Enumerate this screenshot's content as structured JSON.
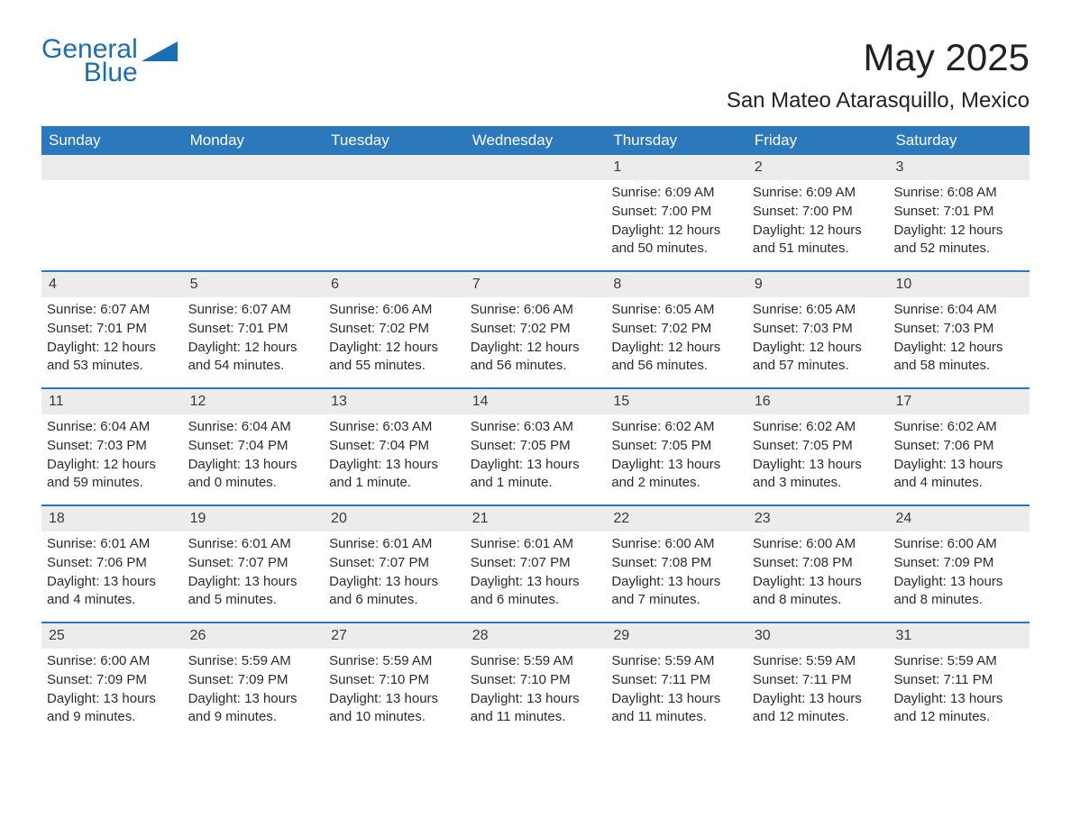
{
  "logo": {
    "text1": "General",
    "text2": "Blue",
    "icon_color": "#1a6fb4"
  },
  "title": "May 2025",
  "location": "San Mateo Atarasquillo, Mexico",
  "colors": {
    "header_bg": "#2b78bd",
    "header_text": "#ffffff",
    "row_divider": "#2b78bd",
    "daynum_bg": "#ececec",
    "body_text": "#2b2b2b",
    "page_bg": "#ffffff"
  },
  "weekdays": [
    "Sunday",
    "Monday",
    "Tuesday",
    "Wednesday",
    "Thursday",
    "Friday",
    "Saturday"
  ],
  "weeks": [
    [
      null,
      null,
      null,
      null,
      {
        "n": "1",
        "sunrise": "Sunrise: 6:09 AM",
        "sunset": "Sunset: 7:00 PM",
        "daylight": "Daylight: 12 hours and 50 minutes."
      },
      {
        "n": "2",
        "sunrise": "Sunrise: 6:09 AM",
        "sunset": "Sunset: 7:00 PM",
        "daylight": "Daylight: 12 hours and 51 minutes."
      },
      {
        "n": "3",
        "sunrise": "Sunrise: 6:08 AM",
        "sunset": "Sunset: 7:01 PM",
        "daylight": "Daylight: 12 hours and 52 minutes."
      }
    ],
    [
      {
        "n": "4",
        "sunrise": "Sunrise: 6:07 AM",
        "sunset": "Sunset: 7:01 PM",
        "daylight": "Daylight: 12 hours and 53 minutes."
      },
      {
        "n": "5",
        "sunrise": "Sunrise: 6:07 AM",
        "sunset": "Sunset: 7:01 PM",
        "daylight": "Daylight: 12 hours and 54 minutes."
      },
      {
        "n": "6",
        "sunrise": "Sunrise: 6:06 AM",
        "sunset": "Sunset: 7:02 PM",
        "daylight": "Daylight: 12 hours and 55 minutes."
      },
      {
        "n": "7",
        "sunrise": "Sunrise: 6:06 AM",
        "sunset": "Sunset: 7:02 PM",
        "daylight": "Daylight: 12 hours and 56 minutes."
      },
      {
        "n": "8",
        "sunrise": "Sunrise: 6:05 AM",
        "sunset": "Sunset: 7:02 PM",
        "daylight": "Daylight: 12 hours and 56 minutes."
      },
      {
        "n": "9",
        "sunrise": "Sunrise: 6:05 AM",
        "sunset": "Sunset: 7:03 PM",
        "daylight": "Daylight: 12 hours and 57 minutes."
      },
      {
        "n": "10",
        "sunrise": "Sunrise: 6:04 AM",
        "sunset": "Sunset: 7:03 PM",
        "daylight": "Daylight: 12 hours and 58 minutes."
      }
    ],
    [
      {
        "n": "11",
        "sunrise": "Sunrise: 6:04 AM",
        "sunset": "Sunset: 7:03 PM",
        "daylight": "Daylight: 12 hours and 59 minutes."
      },
      {
        "n": "12",
        "sunrise": "Sunrise: 6:04 AM",
        "sunset": "Sunset: 7:04 PM",
        "daylight": "Daylight: 13 hours and 0 minutes."
      },
      {
        "n": "13",
        "sunrise": "Sunrise: 6:03 AM",
        "sunset": "Sunset: 7:04 PM",
        "daylight": "Daylight: 13 hours and 1 minute."
      },
      {
        "n": "14",
        "sunrise": "Sunrise: 6:03 AM",
        "sunset": "Sunset: 7:05 PM",
        "daylight": "Daylight: 13 hours and 1 minute."
      },
      {
        "n": "15",
        "sunrise": "Sunrise: 6:02 AM",
        "sunset": "Sunset: 7:05 PM",
        "daylight": "Daylight: 13 hours and 2 minutes."
      },
      {
        "n": "16",
        "sunrise": "Sunrise: 6:02 AM",
        "sunset": "Sunset: 7:05 PM",
        "daylight": "Daylight: 13 hours and 3 minutes."
      },
      {
        "n": "17",
        "sunrise": "Sunrise: 6:02 AM",
        "sunset": "Sunset: 7:06 PM",
        "daylight": "Daylight: 13 hours and 4 minutes."
      }
    ],
    [
      {
        "n": "18",
        "sunrise": "Sunrise: 6:01 AM",
        "sunset": "Sunset: 7:06 PM",
        "daylight": "Daylight: 13 hours and 4 minutes."
      },
      {
        "n": "19",
        "sunrise": "Sunrise: 6:01 AM",
        "sunset": "Sunset: 7:07 PM",
        "daylight": "Daylight: 13 hours and 5 minutes."
      },
      {
        "n": "20",
        "sunrise": "Sunrise: 6:01 AM",
        "sunset": "Sunset: 7:07 PM",
        "daylight": "Daylight: 13 hours and 6 minutes."
      },
      {
        "n": "21",
        "sunrise": "Sunrise: 6:01 AM",
        "sunset": "Sunset: 7:07 PM",
        "daylight": "Daylight: 13 hours and 6 minutes."
      },
      {
        "n": "22",
        "sunrise": "Sunrise: 6:00 AM",
        "sunset": "Sunset: 7:08 PM",
        "daylight": "Daylight: 13 hours and 7 minutes."
      },
      {
        "n": "23",
        "sunrise": "Sunrise: 6:00 AM",
        "sunset": "Sunset: 7:08 PM",
        "daylight": "Daylight: 13 hours and 8 minutes."
      },
      {
        "n": "24",
        "sunrise": "Sunrise: 6:00 AM",
        "sunset": "Sunset: 7:09 PM",
        "daylight": "Daylight: 13 hours and 8 minutes."
      }
    ],
    [
      {
        "n": "25",
        "sunrise": "Sunrise: 6:00 AM",
        "sunset": "Sunset: 7:09 PM",
        "daylight": "Daylight: 13 hours and 9 minutes."
      },
      {
        "n": "26",
        "sunrise": "Sunrise: 5:59 AM",
        "sunset": "Sunset: 7:09 PM",
        "daylight": "Daylight: 13 hours and 9 minutes."
      },
      {
        "n": "27",
        "sunrise": "Sunrise: 5:59 AM",
        "sunset": "Sunset: 7:10 PM",
        "daylight": "Daylight: 13 hours and 10 minutes."
      },
      {
        "n": "28",
        "sunrise": "Sunrise: 5:59 AM",
        "sunset": "Sunset: 7:10 PM",
        "daylight": "Daylight: 13 hours and 11 minutes."
      },
      {
        "n": "29",
        "sunrise": "Sunrise: 5:59 AM",
        "sunset": "Sunset: 7:11 PM",
        "daylight": "Daylight: 13 hours and 11 minutes."
      },
      {
        "n": "30",
        "sunrise": "Sunrise: 5:59 AM",
        "sunset": "Sunset: 7:11 PM",
        "daylight": "Daylight: 13 hours and 12 minutes."
      },
      {
        "n": "31",
        "sunrise": "Sunrise: 5:59 AM",
        "sunset": "Sunset: 7:11 PM",
        "daylight": "Daylight: 13 hours and 12 minutes."
      }
    ]
  ]
}
